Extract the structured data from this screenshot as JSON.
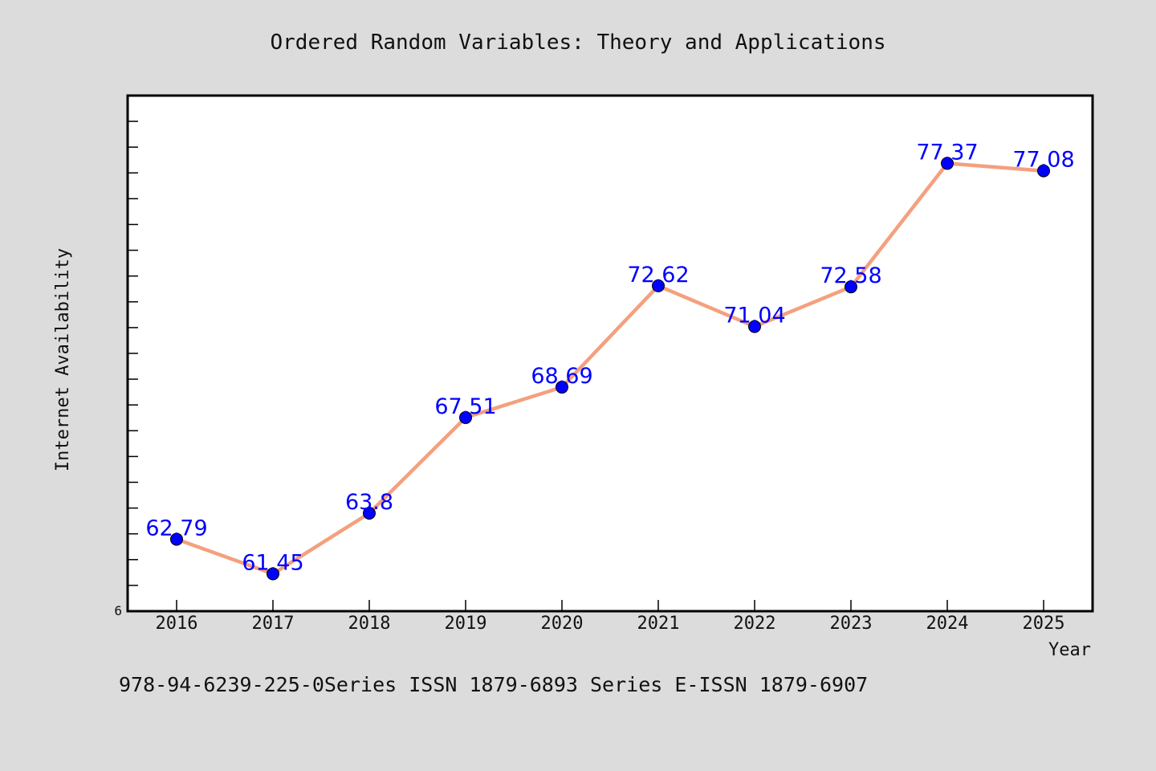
{
  "title": "Ordered Random Variables: Theory and Applications",
  "footer": "978-94-6239-225-0Series ISSN 1879-6893 Series E-ISSN 1879-6907",
  "colors": {
    "background": "#dcdcdc",
    "plot_background": "#ffffff",
    "line": "#f4a07e",
    "marker": "#0000ff",
    "data_label": "#0000ff"
  },
  "chart_data": {
    "type": "line",
    "xlabel": "Year",
    "ylabel": "Internet Availability",
    "categories": [
      "2016",
      "2017",
      "2018",
      "2019",
      "2020",
      "2021",
      "2022",
      "2023",
      "2024",
      "2025"
    ],
    "series": [
      {
        "values": [
          62.79,
          61.45,
          63.8,
          67.51,
          68.69,
          72.62,
          71.04,
          72.58,
          77.37,
          77.08
        ],
        "data_labels": [
          "62.79",
          "61.45",
          "63.8",
          "67.51",
          "68.69",
          "72.62",
          "71.04",
          "72.58",
          "77.37",
          "77.08"
        ]
      }
    ],
    "ylim": [
      60,
      80
    ],
    "y_tick_labels": [
      "6"
    ],
    "grid": false,
    "legend": "none"
  }
}
